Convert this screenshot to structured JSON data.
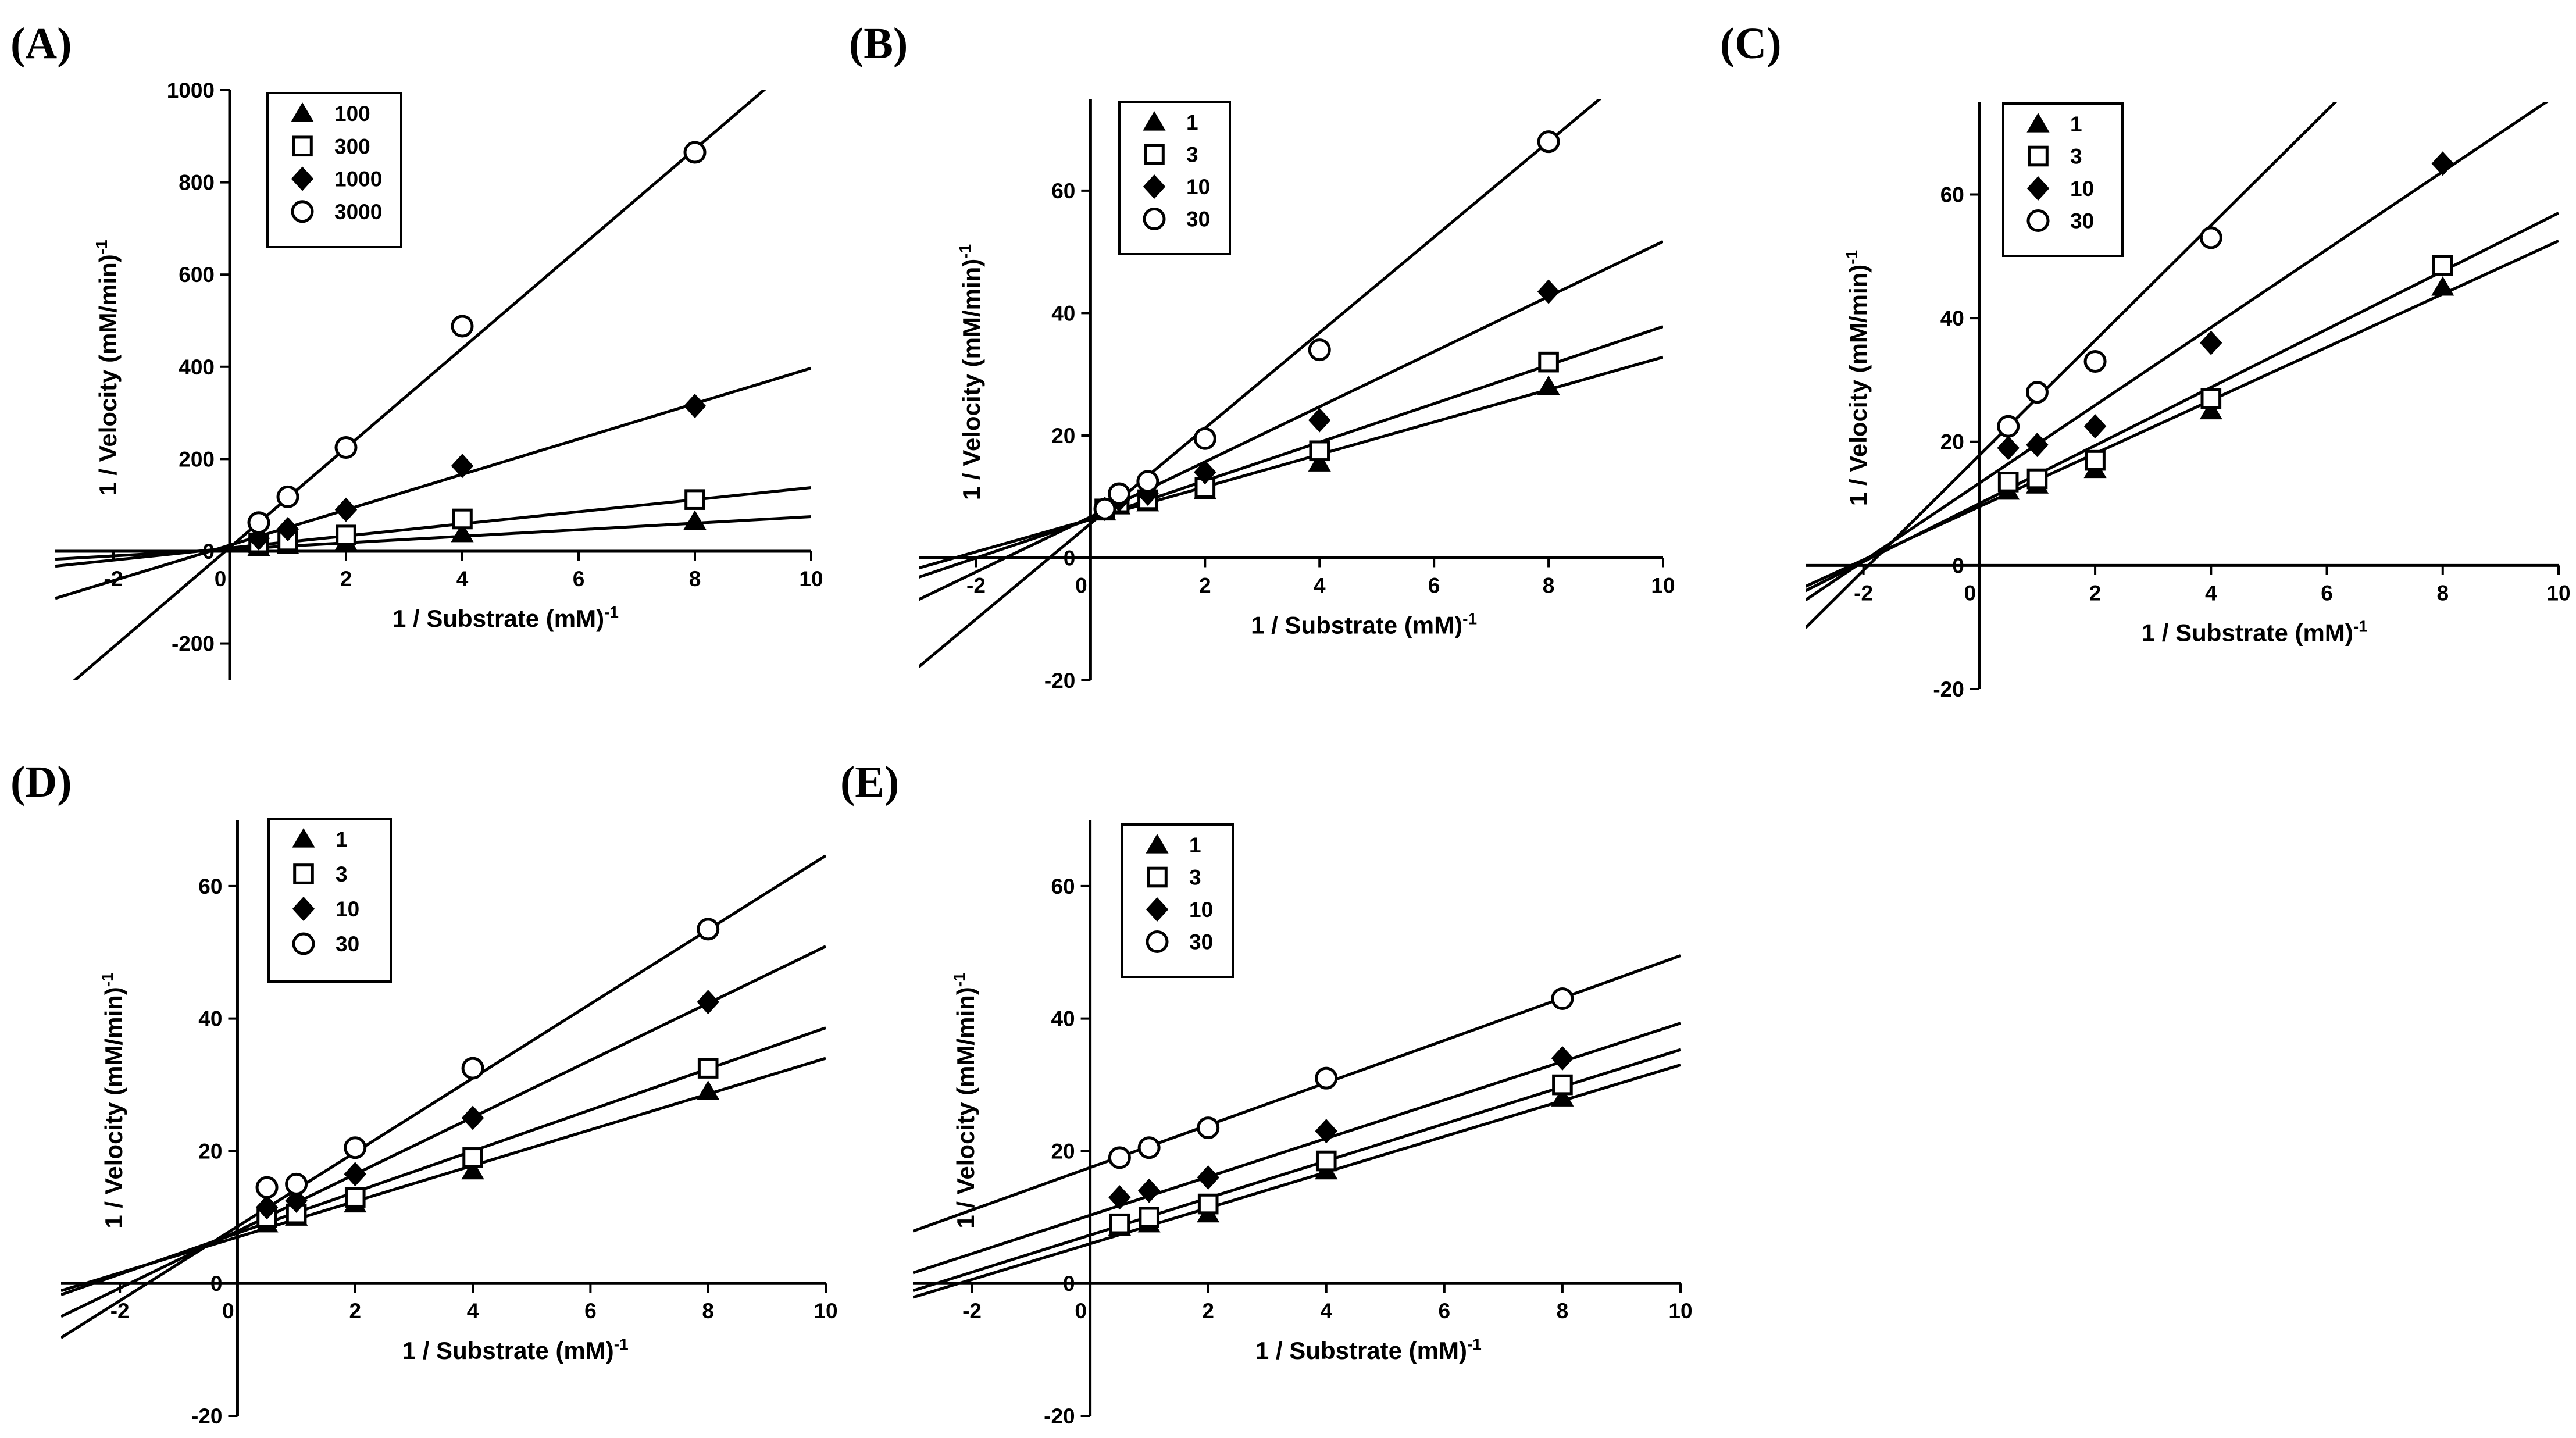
{
  "figure": {
    "shared_xlabel": "1 / Substrate (mM)",
    "shared_xlabel_exp": "-1",
    "shared_ylabel": "1 / Velocity (mM/min)",
    "shared_ylabel_exp": "-1"
  },
  "chart_data": [
    {
      "panel": "(A)",
      "type": "scatter",
      "xlabel": "1 / Substrate (mM)-1",
      "ylabel": "1 / Velocity (mM/min)-1",
      "xlim": [
        -3,
        10
      ],
      "ylim": [
        -280,
        1000
      ],
      "xticks": [
        -2,
        0,
        2,
        4,
        6,
        8,
        10
      ],
      "yticks": [
        -200,
        0,
        200,
        400,
        600,
        800,
        1000
      ],
      "legend_position": "top-left",
      "series": [
        {
          "name": "100",
          "marker": "triangle",
          "x": [
            0.5,
            1,
            2,
            4,
            8
          ],
          "y": [
            8,
            12,
            20,
            38,
            65
          ],
          "line": {
            "slope": 7.1,
            "intercept": 4
          }
        },
        {
          "name": "300",
          "marker": "square",
          "x": [
            0.5,
            1,
            2,
            4,
            8
          ],
          "y": [
            18,
            22,
            35,
            70,
            112
          ],
          "line": {
            "slope": 13.1,
            "intercept": 7
          }
        },
        {
          "name": "1000",
          "marker": "diamond",
          "x": [
            0.5,
            1,
            2,
            4,
            8
          ],
          "y": [
            28,
            48,
            90,
            185,
            315
          ],
          "line": {
            "slope": 38.4,
            "intercept": 13
          }
        },
        {
          "name": "3000",
          "marker": "circle",
          "x": [
            0.5,
            1,
            2,
            4,
            8
          ],
          "y": [
            62,
            118,
            225,
            488,
            865
          ],
          "line": {
            "slope": 108,
            "intercept": 8
          }
        }
      ]
    },
    {
      "panel": "(B)",
      "type": "scatter",
      "xlabel": "1 / Substrate (mM)-1",
      "ylabel": "1 / Velocity (mM/min)-1",
      "xlim": [
        -3,
        10
      ],
      "ylim": [
        -20,
        75
      ],
      "xticks": [
        -2,
        0,
        2,
        4,
        6,
        8,
        10
      ],
      "yticks": [
        -20,
        0,
        20,
        40,
        60
      ],
      "legend_position": "top-left",
      "series": [
        {
          "name": "1",
          "marker": "triangle",
          "x": [
            0.25,
            0.5,
            1,
            2,
            4,
            8
          ],
          "y": [
            7.5,
            8.5,
            9,
            11,
            15.5,
            28
          ],
          "line": {
            "slope": 2.65,
            "intercept": 6.3
          }
        },
        {
          "name": "3",
          "marker": "square",
          "x": [
            0.25,
            0.5,
            1,
            2,
            4,
            8
          ],
          "y": [
            8,
            9,
            9.5,
            11.5,
            17.5,
            32
          ],
          "line": {
            "slope": 3.15,
            "intercept": 6.3
          }
        },
        {
          "name": "10",
          "marker": "diamond",
          "x": [
            0.25,
            0.5,
            1,
            2,
            4,
            8
          ],
          "y": [
            8,
            9.5,
            10.5,
            14,
            22.5,
            43.5
          ],
          "line": {
            "slope": 4.5,
            "intercept": 6.7
          }
        },
        {
          "name": "30",
          "marker": "circle",
          "x": [
            0.25,
            0.5,
            1,
            2,
            4,
            8
          ],
          "y": [
            8,
            10.5,
            12.5,
            19.5,
            34,
            68
          ],
          "line": {
            "slope": 7.8,
            "intercept": 5.6
          }
        }
      ]
    },
    {
      "panel": "(C)",
      "type": "scatter",
      "xlabel": "1 / Substrate (mM)-1",
      "ylabel": "1 / Velocity (mM/min)-1",
      "xlim": [
        -3,
        10
      ],
      "ylim": [
        -20,
        75
      ],
      "xticks": [
        -2,
        0,
        2,
        4,
        6,
        8,
        10
      ],
      "yticks": [
        -20,
        0,
        20,
        40,
        60
      ],
      "legend_position": "top-left",
      "series": [
        {
          "name": "1",
          "marker": "triangle",
          "x": [
            0.5,
            1,
            2,
            4,
            8
          ],
          "y": [
            12,
            13,
            15.5,
            25,
            45
          ],
          "line": {
            "slope": 4.3,
            "intercept": 9.5
          }
        },
        {
          "name": "3",
          "marker": "square",
          "x": [
            0.5,
            1,
            2,
            4,
            8
          ],
          "y": [
            13.5,
            14,
            17,
            27,
            48.5
          ],
          "line": {
            "slope": 4.7,
            "intercept": 10
          }
        },
        {
          "name": "10",
          "marker": "diamond",
          "x": [
            0.5,
            1,
            2,
            4,
            8
          ],
          "y": [
            19,
            19.5,
            22.5,
            36,
            65
          ],
          "line": {
            "slope": 6.3,
            "intercept": 13.3
          }
        },
        {
          "name": "30",
          "marker": "circle",
          "x": [
            0.5,
            1,
            2,
            4,
            8
          ],
          "y": [
            22.5,
            28,
            33,
            53,
            null
          ],
          "line": {
            "slope": 9.3,
            "intercept": 17.8
          }
        }
      ]
    },
    {
      "panel": "(D)",
      "type": "scatter",
      "xlabel": "1 / Substrate (mM)-1",
      "ylabel": "1 / Velocity (mM/min)-1",
      "xlim": [
        -3,
        10
      ],
      "ylim": [
        -20,
        70
      ],
      "xticks": [
        -2,
        0,
        2,
        4,
        6,
        8,
        10
      ],
      "yticks": [
        -20,
        0,
        20,
        40,
        60
      ],
      "legend_position": "top-left",
      "series": [
        {
          "name": "1",
          "marker": "triangle",
          "x": [
            0.5,
            1,
            2,
            4,
            8
          ],
          "y": [
            9,
            10,
            12,
            17,
            29
          ],
          "line": {
            "slope": 2.7,
            "intercept": 7
          }
        },
        {
          "name": "3",
          "marker": "square",
          "x": [
            0.5,
            1,
            2,
            4,
            8
          ],
          "y": [
            10,
            10.5,
            13,
            19,
            32.5
          ],
          "line": {
            "slope": 3.1,
            "intercept": 7.6
          }
        },
        {
          "name": "10",
          "marker": "diamond",
          "x": [
            0.5,
            1,
            2,
            4,
            8
          ],
          "y": [
            11.5,
            12.5,
            16.5,
            25,
            42.5
          ],
          "line": {
            "slope": 4.3,
            "intercept": 7.9
          }
        },
        {
          "name": "30",
          "marker": "circle",
          "x": [
            0.5,
            1,
            2,
            4,
            8
          ],
          "y": [
            14.5,
            15,
            20.5,
            32.5,
            53.5
          ],
          "line": {
            "slope": 5.6,
            "intercept": 8.6
          }
        }
      ]
    },
    {
      "panel": "(E)",
      "type": "scatter",
      "xlabel": "1 / Substrate (mM)-1",
      "ylabel": "1 / Velocity (mM/min)-1",
      "xlim": [
        -3,
        10
      ],
      "ylim": [
        -20,
        70
      ],
      "xticks": [
        -2,
        0,
        2,
        4,
        6,
        8,
        10
      ],
      "yticks": [
        -20,
        0,
        20,
        40,
        60
      ],
      "legend_position": "top-left",
      "series": [
        {
          "name": "1",
          "marker": "triangle",
          "x": [
            0.5,
            1,
            2,
            4,
            8
          ],
          "y": [
            8.5,
            9,
            10.5,
            17,
            28
          ],
          "line": {
            "slope": 2.7,
            "intercept": 6
          }
        },
        {
          "name": "3",
          "marker": "square",
          "x": [
            0.5,
            1,
            2,
            4,
            8
          ],
          "y": [
            9,
            10,
            12,
            18.5,
            30
          ],
          "line": {
            "slope": 2.8,
            "intercept": 7.3
          }
        },
        {
          "name": "10",
          "marker": "diamond",
          "x": [
            0.5,
            1,
            2,
            4,
            8
          ],
          "y": [
            13,
            14,
            16,
            23,
            34
          ],
          "line": {
            "slope": 2.9,
            "intercept": 10.3
          }
        },
        {
          "name": "30",
          "marker": "circle",
          "x": [
            0.5,
            1,
            2,
            4,
            8
          ],
          "y": [
            19,
            20.5,
            23.5,
            31,
            43
          ],
          "line": {
            "slope": 3.2,
            "intercept": 17.5
          }
        }
      ]
    }
  ]
}
